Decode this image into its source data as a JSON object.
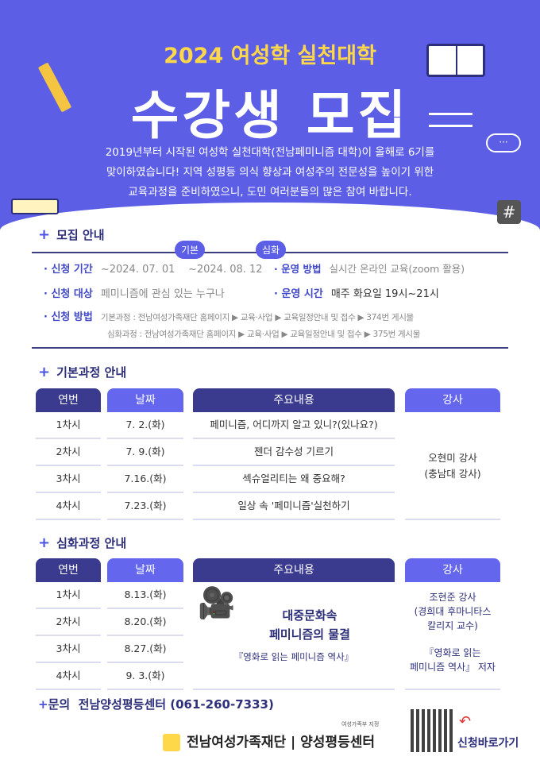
{
  "header": {
    "title": "2024 여성학 실천대학",
    "headline": "수강생 모집",
    "intro": [
      "2019년부터 시작된 여성학 실천대학(전남페미니즘 대학)이 올해로 6기를",
      "맞이하였습니다! 지역 성평등 의식 향상과 여성주의 전문성을 높이기 위한",
      "교육과정을 준비하였으니, 도민 여러분들의 많은 참여 바랍니다."
    ],
    "hash": "#",
    "bubble": "···"
  },
  "recruit": {
    "title": "모집 안내",
    "pill_basic": "기본",
    "pill_adv": "심화",
    "period_label": "신청 기간",
    "period_basic": "~2024. 07. 01",
    "period_adv": "~2024. 08. 12",
    "method_label": "운영 방법",
    "method": "실시간 온라인 교육(zoom 활용)",
    "target_label": "신청 대상",
    "target": "페미니즘에 관심 있는 누구나",
    "time_label": "운영 시간",
    "time": "매주 화요일 19시~21시",
    "apply_label": "신청 방법",
    "apply_basic": "기본과정 : 전남여성가족재단 홈페이지 ▶ 교육·사업 ▶ 교육일정안내 및 접수 ▶ 374번 게시물",
    "apply_adv": "심화과정 : 전남여성가족재단 홈페이지 ▶ 교육·사업 ▶ 교육일정안내 및 접수 ▶ 375번 게시물"
  },
  "basic": {
    "title": "기본과정 안내",
    "headers": [
      "연번",
      "날짜",
      "주요내용",
      "강사"
    ],
    "rows": [
      {
        "no": "1차시",
        "date": "7. 2.(화)",
        "content": "페미니즘, 어디까지 알고 있니?(있나요?)"
      },
      {
        "no": "2차시",
        "date": "7. 9.(화)",
        "content": "젠더 감수성 기르기"
      },
      {
        "no": "3차시",
        "date": "7.16.(화)",
        "content": "섹슈얼리티는 왜 중요해?"
      },
      {
        "no": "4차시",
        "date": "7.23.(화)",
        "content": "일상 속 '페미니즘'실천하기"
      }
    ],
    "lecturer": "오현미 강사",
    "lecturer_aff": "(충남대 강사)"
  },
  "advanced": {
    "title": "심화과정 안내",
    "headers": [
      "연번",
      "날짜",
      "주요내용",
      "강사"
    ],
    "rows": [
      {
        "no": "1차시",
        "date": "8.13.(화)"
      },
      {
        "no": "2차시",
        "date": "8.20.(화)"
      },
      {
        "no": "3차시",
        "date": "8.27.(화)"
      },
      {
        "no": "4차시",
        "date": "9. 3.(화)"
      }
    ],
    "content_line1": "대중문화속",
    "content_line2": "페미니즘의 물결",
    "content_book": "『영화로 읽는 페미니즘 역사』",
    "lecturer": "조현준 강사",
    "lecturer_aff1": "(경희대 후마니타스",
    "lecturer_aff2": "칼리지 교수)",
    "lecturer_book1": "『영화로 읽는",
    "lecturer_book2": "페미니즘 역사』 저자"
  },
  "footer": {
    "contact_label": "문의",
    "contact": "전남양성평등센터 (061-260-7333)",
    "org": "전남여성가족재단 | 양성평등센터",
    "ministry": "여성가족부 지정",
    "apply_link": "신청바로가기"
  },
  "colors": {
    "primary": "#5c5fe6",
    "navy": "#3a3b8f",
    "title_yellow": "#ffd84a"
  }
}
